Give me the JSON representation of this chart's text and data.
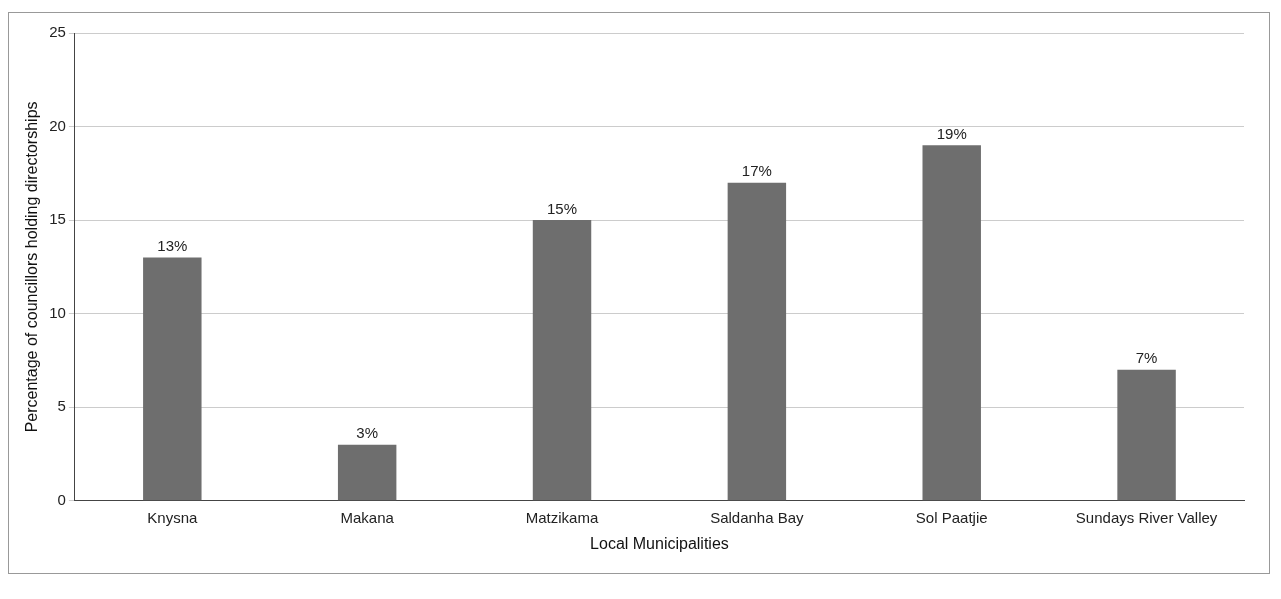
{
  "chart_data": {
    "type": "bar",
    "xlabel": "Local Municipalities",
    "ylabel": "Percentage of councillors holding directorships",
    "categories": [
      "Knysna",
      "Makana",
      "Matzikama",
      "Saldanha Bay",
      "Sol Paatjie",
      "Sundays River Valley"
    ],
    "values": [
      13,
      3,
      15,
      17,
      19,
      7
    ],
    "value_labels": [
      "13%",
      "3%",
      "15%",
      "17%",
      "19%",
      "7%"
    ],
    "color": "#6e6e6e",
    "ylim": [
      0,
      25
    ],
    "yticks": [
      0,
      5,
      10,
      15,
      20,
      25
    ],
    "grid": "y",
    "legend": false
  }
}
